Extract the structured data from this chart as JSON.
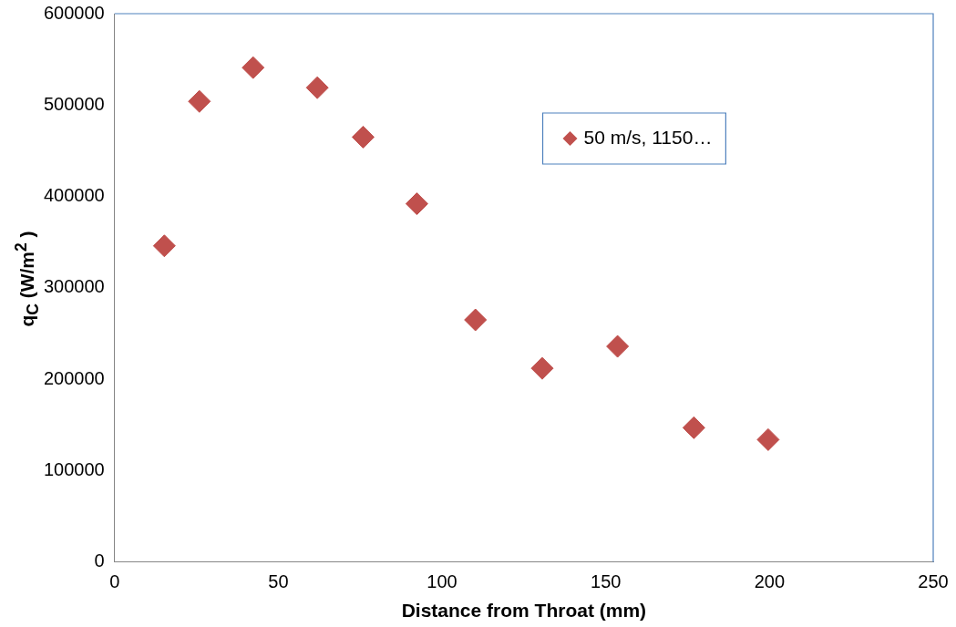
{
  "chart_data": {
    "type": "scatter",
    "xlabel": "Distance from Throat (mm)",
    "ylabel": "q$_{C}$ (W/m$^{2}$ )",
    "x": [
      15.2,
      25.9,
      42.3,
      61.9,
      75.9,
      92.3,
      110.2,
      130.6,
      153.6,
      176.9,
      199.6
    ],
    "series": [
      {
        "name": "50 m/s, 1150…",
        "color": "#c0504d",
        "values": [
          346000,
          504000,
          541000,
          519000,
          465000,
          392000,
          265000,
          212000,
          236000,
          147000,
          134000
        ]
      }
    ],
    "xlim": [
      0,
      250
    ],
    "xticks": [
      0,
      50,
      100,
      150,
      200,
      250
    ],
    "ylim": [
      0,
      600000
    ],
    "yticks": [
      0,
      100000,
      200000,
      300000,
      400000,
      500000,
      600000
    ],
    "grid": false,
    "legend": "top right",
    "marker": "diamond"
  }
}
